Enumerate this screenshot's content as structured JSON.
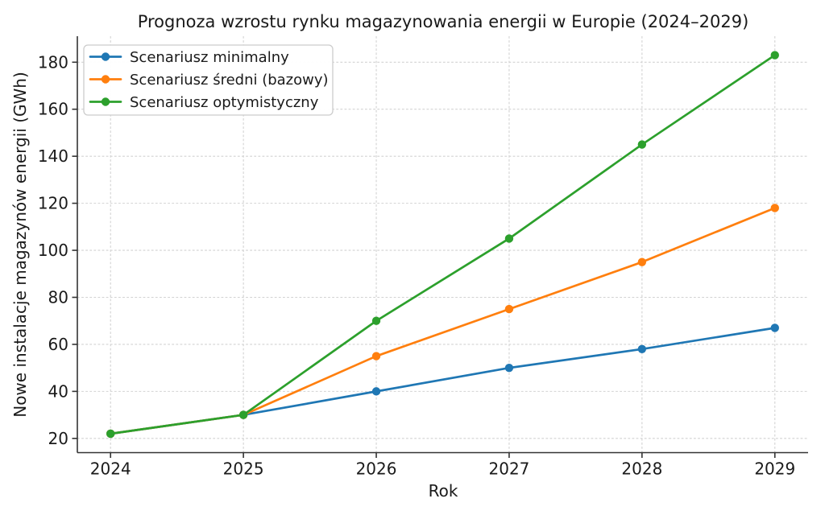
{
  "figure": {
    "background": "#ffffff",
    "text_color": "#1a1a1a",
    "tick_color": "#333333",
    "spine_color": "#333333",
    "grid_color": "#d2d2d2",
    "legend": {
      "background": "#ffffff",
      "border_color": "#cccccc"
    }
  },
  "chart_data": {
    "type": "line",
    "title": "Prognoza wzrostu rynku magazynowania energii w Europie (2024–2029)",
    "xlabel": "Rok",
    "ylabel": "Nowe instalacje magazynów energii (GWh)",
    "x": [
      2024,
      2025,
      2026,
      2027,
      2028,
      2029
    ],
    "xticklabels": [
      "2024",
      "2025",
      "2026",
      "2027",
      "2028",
      "2029"
    ],
    "yticks": [
      20,
      40,
      60,
      80,
      100,
      120,
      140,
      160,
      180
    ],
    "yticklabels": [
      "20",
      "40",
      "60",
      "80",
      "100",
      "120",
      "140",
      "160",
      "180"
    ],
    "xlim": [
      2023.75,
      2029.25
    ],
    "ylim": [
      13.95,
      191.05
    ],
    "grid": true,
    "grid_style": "dashed",
    "legend_position": "upper-left",
    "series": [
      {
        "name": "Scenariusz minimalny",
        "color": "#1f77b4",
        "marker": "circle",
        "values": [
          22,
          30,
          40,
          50,
          58,
          67
        ]
      },
      {
        "name": "Scenariusz średni (bazowy)",
        "color": "#ff7f0e",
        "marker": "circle",
        "values": [
          22,
          30,
          55,
          75,
          95,
          118
        ]
      },
      {
        "name": "Scenariusz optymistyczny",
        "color": "#2ca02c",
        "marker": "circle",
        "values": [
          22,
          30,
          70,
          105,
          145,
          183
        ]
      }
    ]
  }
}
